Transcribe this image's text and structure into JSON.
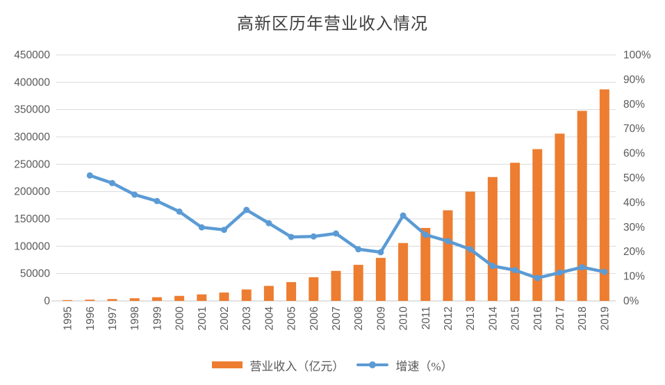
{
  "colors": {
    "bar": "#ED7D31",
    "line": "#5B9BD5",
    "grid": "#D9D9D9",
    "axis_line": "#D9D9D9",
    "tick_text": "#595959",
    "title_text": "#404040"
  },
  "legend": {
    "revenue_label": "营业收入（亿元）",
    "growth_label": "增速（%）"
  },
  "chart_data": {
    "type": "bar+line",
    "title": "高新区历年营业收入情况",
    "categories": [
      "1995",
      "1996",
      "1997",
      "1998",
      "1999",
      "2000",
      "2001",
      "2002",
      "2003",
      "2004",
      "2005",
      "2006",
      "2007",
      "2008",
      "2009",
      "2010",
      "2011",
      "2012",
      "2013",
      "2014",
      "2015",
      "2016",
      "2017",
      "2018",
      "2019"
    ],
    "series": [
      {
        "name": "营业收入（亿元）",
        "type": "bar",
        "axis": "left",
        "values": [
          1529,
          2300,
          3388,
          4840,
          6775,
          9209,
          11928,
          15326,
          20939,
          27466,
          34416,
          43320,
          54926,
          65986,
          78707,
          105917,
          133434,
          165758,
          199902,
          226596,
          252709,
          277628,
          305985,
          347695,
          386935
        ]
      },
      {
        "name": "增速（%）",
        "type": "line",
        "axis": "right",
        "values": [
          null,
          51.0,
          47.9,
          43.2,
          40.6,
          36.3,
          29.9,
          28.9,
          37.0,
          31.6,
          26.0,
          26.2,
          27.4,
          21.0,
          19.8,
          34.7,
          26.9,
          24.3,
          21.0,
          14.2,
          12.5,
          9.3,
          11.5,
          13.7,
          11.8
        ]
      }
    ],
    "left_axis": {
      "min": 0,
      "max": 450000,
      "step": 50000,
      "tick_labels": [
        "0",
        "50000",
        "100000",
        "150000",
        "200000",
        "250000",
        "300000",
        "350000",
        "400000",
        "450000"
      ]
    },
    "right_axis": {
      "min": 0,
      "max": 100,
      "step": 10,
      "tick_labels": [
        "0%",
        "10%",
        "20%",
        "30%",
        "40%",
        "50%",
        "60%",
        "70%",
        "80%",
        "90%",
        "100%"
      ]
    },
    "grid": true,
    "legend_position": "bottom"
  }
}
